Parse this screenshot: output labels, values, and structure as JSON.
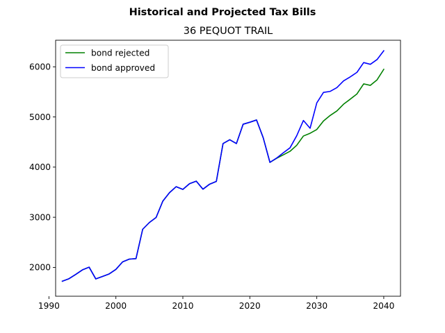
{
  "chart_data": {
    "type": "line",
    "suptitle": "Historical and Projected Tax Bills",
    "title": "36 PEQUOT TRAIL",
    "xlabel": "",
    "ylabel": "",
    "xlim": [
      1991,
      2042.5
    ],
    "ylim": [
      1425,
      6530
    ],
    "xticks": [
      1990,
      2000,
      2010,
      2020,
      2030,
      2040
    ],
    "yticks": [
      2000,
      3000,
      4000,
      5000,
      6000
    ],
    "grid": false,
    "legend_position": "upper left",
    "series": [
      {
        "name": "bond rejected",
        "color": "#008000",
        "x": [
          1992,
          1993,
          1994,
          1995,
          1996,
          1997,
          1998,
          1999,
          2000,
          2001,
          2002,
          2003,
          2004,
          2005,
          2006,
          2007,
          2008,
          2009,
          2010,
          2011,
          2012,
          2013,
          2014,
          2015,
          2016,
          2017,
          2018,
          2019,
          2020,
          2021,
          2022,
          2023,
          2024,
          2025,
          2026,
          2027,
          2028,
          2029,
          2030,
          2031,
          2032,
          2033,
          2034,
          2035,
          2036,
          2037,
          2038,
          2039,
          2040
        ],
        "y": [
          1725,
          1775,
          1860,
          1950,
          2005,
          1770,
          1820,
          1870,
          1960,
          2110,
          2165,
          2175,
          2760,
          2895,
          2995,
          3320,
          3490,
          3610,
          3555,
          3670,
          3720,
          3560,
          3660,
          3715,
          4470,
          4545,
          4470,
          4855,
          4895,
          4940,
          4585,
          4095,
          4175,
          4245,
          4315,
          4435,
          4620,
          4675,
          4750,
          4920,
          5030,
          5120,
          5255,
          5355,
          5460,
          5660,
          5630,
          5740,
          5950
        ]
      },
      {
        "name": "bond approved",
        "color": "#0000ff",
        "x": [
          1992,
          1993,
          1994,
          1995,
          1996,
          1997,
          1998,
          1999,
          2000,
          2001,
          2002,
          2003,
          2004,
          2005,
          2006,
          2007,
          2008,
          2009,
          2010,
          2011,
          2012,
          2013,
          2014,
          2015,
          2016,
          2017,
          2018,
          2019,
          2020,
          2021,
          2022,
          2023,
          2024,
          2025,
          2026,
          2027,
          2028,
          2029,
          2030,
          2031,
          2032,
          2033,
          2034,
          2035,
          2036,
          2037,
          2038,
          2039,
          2040
        ],
        "y": [
          1725,
          1775,
          1860,
          1950,
          2005,
          1770,
          1820,
          1870,
          1960,
          2110,
          2165,
          2175,
          2760,
          2895,
          2995,
          3320,
          3490,
          3610,
          3555,
          3670,
          3720,
          3560,
          3660,
          3715,
          4470,
          4545,
          4470,
          4855,
          4895,
          4940,
          4585,
          4095,
          4180,
          4285,
          4385,
          4625,
          4930,
          4775,
          5280,
          5490,
          5510,
          5585,
          5720,
          5800,
          5890,
          6085,
          6050,
          6145,
          6320
        ]
      }
    ]
  }
}
